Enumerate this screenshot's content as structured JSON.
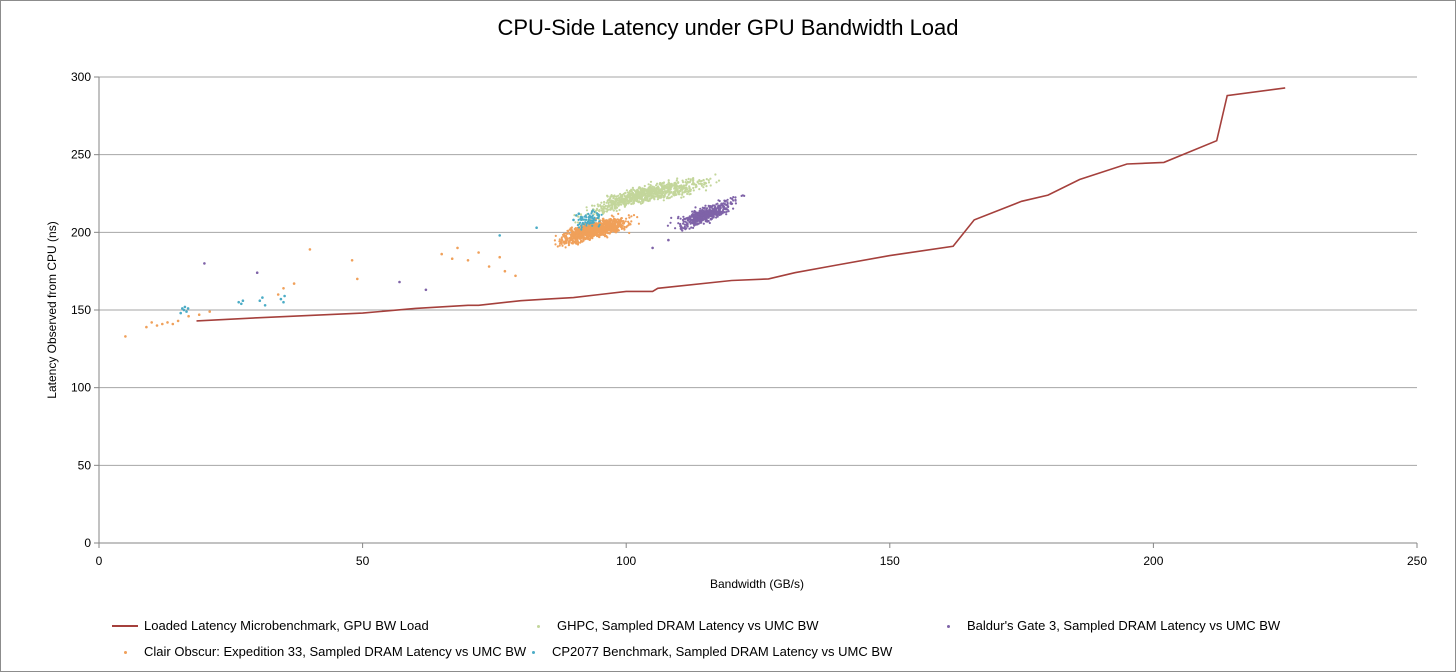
{
  "chart_data": {
    "type": "scatter",
    "title": "CPU-Side Latency under GPU Bandwidth Load",
    "xlabel": "Bandwidth (GB/s)",
    "ylabel": "Latency Observed from CPU (ns)",
    "xlim": [
      0,
      250
    ],
    "ylim": [
      0,
      300
    ],
    "xticks": [
      0,
      50,
      100,
      150,
      200,
      250
    ],
    "yticks": [
      0,
      50,
      100,
      150,
      200,
      250,
      300
    ],
    "grid": "horizontal",
    "legend_position": "bottom",
    "series": [
      {
        "name": "Loaded Latency Microbenchmark, GPU BW Load",
        "kind": "line",
        "color": "#a5403c",
        "x": [
          18.5,
          30,
          50,
          60,
          70,
          72,
          80,
          85,
          90,
          95,
          100,
          105,
          106,
          120,
          127,
          132,
          140,
          150,
          162,
          166,
          175,
          180,
          186,
          195,
          202,
          212,
          214,
          225
        ],
        "y": [
          143,
          145,
          148,
          151,
          153,
          153,
          156,
          157,
          158,
          160,
          162,
          162,
          164,
          169,
          170,
          174,
          179,
          185,
          191,
          208,
          220,
          224,
          234,
          244,
          245,
          259,
          288,
          293
        ]
      },
      {
        "name": "GHPC, Sampled DRAM Latency vs UMC BW",
        "kind": "scatter",
        "color": "#c3d69b",
        "cluster": {
          "x_range": [
            78,
            130
          ],
          "y_range": [
            190,
            245
          ],
          "trend": [
            [
              80,
              195
            ],
            [
              100,
              222
            ],
            [
              115,
              232
            ],
            [
              130,
              242
            ]
          ],
          "n": 900
        }
      },
      {
        "name": "Baldur's Gate 3, Sampled DRAM Latency vs UMC BW",
        "kind": "scatter",
        "color": "#7f63a8",
        "cluster": {
          "x_range": [
            102,
            128
          ],
          "y_range": [
            200,
            240
          ],
          "trend": [
            [
              110,
              205
            ],
            [
              118,
              215
            ],
            [
              126,
              232
            ]
          ],
          "n": 500
        },
        "outliers": [
          [
            20,
            180
          ],
          [
            30,
            174
          ],
          [
            57,
            168
          ],
          [
            62,
            163
          ],
          [
            105,
            190
          ],
          [
            108,
            195
          ]
        ]
      },
      {
        "name": "Clair Obscur: Expedition 33, Sampled DRAM Latency vs UMC BW",
        "kind": "scatter",
        "color": "#f0a05a",
        "cluster": {
          "x_range": [
            80,
            108
          ],
          "y_range": [
            178,
            222
          ],
          "trend": [
            [
              82,
              188
            ],
            [
              92,
              200
            ],
            [
              104,
              210
            ]
          ],
          "n": 1100
        },
        "outliers": [
          [
            5,
            133
          ],
          [
            9,
            139
          ],
          [
            10,
            142
          ],
          [
            11,
            140
          ],
          [
            12,
            141
          ],
          [
            13,
            142
          ],
          [
            14,
            141
          ],
          [
            15,
            143
          ],
          [
            17,
            146
          ],
          [
            19,
            147
          ],
          [
            21,
            149
          ],
          [
            34,
            160
          ],
          [
            35,
            164
          ],
          [
            37,
            167
          ],
          [
            40,
            189
          ],
          [
            48,
            182
          ],
          [
            49,
            170
          ],
          [
            65,
            186
          ],
          [
            67,
            183
          ],
          [
            68,
            190
          ],
          [
            70,
            182
          ],
          [
            72,
            187
          ],
          [
            74,
            178
          ],
          [
            76,
            184
          ],
          [
            77,
            175
          ],
          [
            79,
            172
          ]
        ]
      },
      {
        "name": "CP2077 Benchmark, Sampled DRAM Latency vs UMC BW",
        "kind": "scatter",
        "color": "#4bacc6",
        "cluster": {
          "x_range": [
            86,
            100
          ],
          "y_range": [
            195,
            222
          ],
          "trend": [
            [
              88,
              205
            ],
            [
              95,
              210
            ],
            [
              99,
              215
            ]
          ],
          "n": 80
        },
        "outliers": [
          [
            15.5,
            148
          ],
          [
            15.8,
            151
          ],
          [
            16.1,
            150
          ],
          [
            16.3,
            152
          ],
          [
            16.6,
            149
          ],
          [
            16.9,
            151
          ],
          [
            26.5,
            155
          ],
          [
            27,
            154
          ],
          [
            27.3,
            156
          ],
          [
            30.5,
            156
          ],
          [
            31,
            158
          ],
          [
            31.5,
            153
          ],
          [
            34.5,
            157
          ],
          [
            35,
            155
          ],
          [
            35.2,
            159
          ],
          [
            76,
            198
          ],
          [
            83,
            203
          ],
          [
            90,
            208
          ],
          [
            91,
            212
          ]
        ]
      }
    ]
  }
}
